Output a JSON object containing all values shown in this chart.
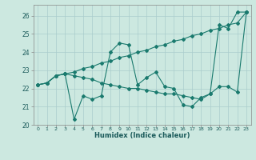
{
  "xlabel": "Humidex (Indice chaleur)",
  "bg_color": "#cce8e0",
  "grid_color": "#aacccc",
  "line_color": "#1a7a6e",
  "xlim": [
    -0.5,
    23.5
  ],
  "ylim": [
    20.0,
    26.6
  ],
  "yticks": [
    20,
    21,
    22,
    23,
    24,
    25,
    26
  ],
  "xtick_labels": [
    "0",
    "1",
    "2",
    "3",
    "4",
    "5",
    "6",
    "7",
    "8",
    "9",
    "10",
    "11",
    "12",
    "13",
    "14",
    "15",
    "16",
    "17",
    "18",
    "19",
    "20",
    "21",
    "22",
    "23"
  ],
  "series": [
    [
      22.2,
      22.3,
      22.7,
      22.8,
      20.3,
      21.6,
      21.4,
      21.6,
      24.0,
      24.5,
      24.4,
      22.2,
      22.6,
      22.9,
      22.1,
      22.0,
      21.1,
      21.0,
      21.5,
      21.7,
      25.5,
      25.3,
      26.2,
      26.2
    ],
    [
      22.2,
      22.3,
      22.7,
      22.8,
      22.7,
      22.6,
      22.5,
      22.3,
      22.2,
      22.1,
      22.0,
      22.0,
      21.9,
      21.8,
      21.7,
      21.7,
      21.6,
      21.5,
      21.4,
      21.7,
      22.1,
      22.1,
      21.8,
      26.2
    ],
    [
      22.2,
      22.3,
      22.7,
      22.8,
      22.9,
      23.1,
      23.2,
      23.4,
      23.5,
      23.7,
      23.8,
      24.0,
      24.1,
      24.3,
      24.4,
      24.6,
      24.7,
      24.9,
      25.0,
      25.2,
      25.3,
      25.5,
      25.6,
      26.2
    ]
  ]
}
